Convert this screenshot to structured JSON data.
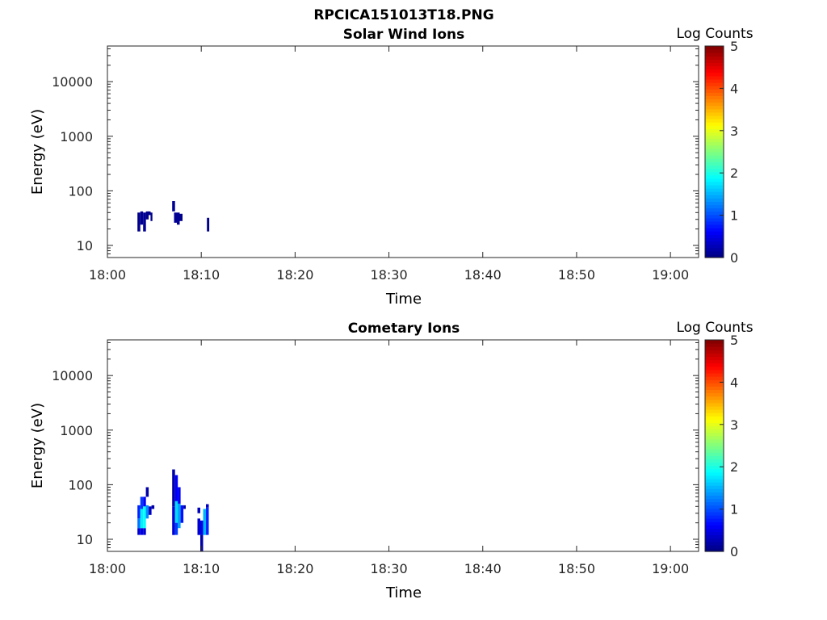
{
  "figure": {
    "title": "RPCICA151013T18.PNG"
  },
  "colorbar": {
    "label": "Log Counts",
    "ticks": [
      "0",
      "1",
      "2",
      "3",
      "4",
      "5"
    ],
    "range": [
      0,
      5
    ],
    "colormap": "jet"
  },
  "chart_data": [
    {
      "type": "heatmap",
      "title": "Solar Wind Ions",
      "xlabel": "Time",
      "ylabel": "Energy (eV)",
      "xlim": [
        "18:00",
        "19:03"
      ],
      "ylim": [
        6,
        45000
      ],
      "yscale": "log",
      "xticks": [
        "18:00",
        "18:10",
        "18:20",
        "18:30",
        "18:40",
        "18:50",
        "19:00"
      ],
      "yticks": [
        "10",
        "100",
        "1000",
        "10000"
      ],
      "cells": [
        {
          "t": 3.2,
          "dt": 0.3,
          "e": [
            18,
            40
          ],
          "v": 0.05
        },
        {
          "t": 3.5,
          "dt": 0.3,
          "e": [
            24,
            42
          ],
          "v": 0.1
        },
        {
          "t": 3.8,
          "dt": 0.3,
          "e": [
            18,
            40
          ],
          "v": 0.1
        },
        {
          "t": 4.1,
          "dt": 0.3,
          "e": [
            30,
            42
          ],
          "v": 0.05
        },
        {
          "t": 4.3,
          "dt": 0.3,
          "e": [
            36,
            42
          ],
          "v": 0.05
        },
        {
          "t": 4.6,
          "dt": 0.2,
          "e": [
            28,
            40
          ],
          "v": 0.05
        },
        {
          "t": 6.9,
          "dt": 0.3,
          "e": [
            42,
            65
          ],
          "v": 0.1
        },
        {
          "t": 7.1,
          "dt": 0.3,
          "e": [
            26,
            40
          ],
          "v": 0.1
        },
        {
          "t": 7.4,
          "dt": 0.3,
          "e": [
            24,
            40
          ],
          "v": 0.1
        },
        {
          "t": 7.7,
          "dt": 0.3,
          "e": [
            28,
            38
          ],
          "v": 0.05
        },
        {
          "t": 10.6,
          "dt": 0.25,
          "e": [
            18,
            32
          ],
          "v": 0.05
        }
      ]
    },
    {
      "type": "heatmap",
      "title": "Cometary Ions",
      "xlabel": "Time",
      "ylabel": "Energy (eV)",
      "xlim": [
        "18:00",
        "19:03"
      ],
      "ylim": [
        6,
        45000
      ],
      "yscale": "log",
      "xticks": [
        "18:00",
        "18:10",
        "18:20",
        "18:30",
        "18:40",
        "18:50",
        "19:00"
      ],
      "yticks": [
        "10",
        "100",
        "1000",
        "10000"
      ],
      "cells": [
        {
          "t": 3.2,
          "dt": 0.3,
          "e": [
            12,
            16
          ],
          "v": 0.4
        },
        {
          "t": 3.2,
          "dt": 0.3,
          "e": [
            16,
            24
          ],
          "v": 1.2
        },
        {
          "t": 3.2,
          "dt": 0.3,
          "e": [
            24,
            42
          ],
          "v": 0.8
        },
        {
          "t": 3.5,
          "dt": 0.3,
          "e": [
            12,
            16
          ],
          "v": 0.5
        },
        {
          "t": 3.5,
          "dt": 0.3,
          "e": [
            16,
            36
          ],
          "v": 1.8
        },
        {
          "t": 3.5,
          "dt": 0.3,
          "e": [
            36,
            60
          ],
          "v": 0.9
        },
        {
          "t": 3.8,
          "dt": 0.3,
          "e": [
            12,
            16
          ],
          "v": 0.4
        },
        {
          "t": 3.8,
          "dt": 0.3,
          "e": [
            16,
            40
          ],
          "v": 1.9
        },
        {
          "t": 3.8,
          "dt": 0.3,
          "e": [
            40,
            60
          ],
          "v": 0.6
        },
        {
          "t": 4.1,
          "dt": 0.3,
          "e": [
            24,
            42
          ],
          "v": 1.3
        },
        {
          "t": 4.1,
          "dt": 0.3,
          "e": [
            60,
            90
          ],
          "v": 0.2
        },
        {
          "t": 4.4,
          "dt": 0.3,
          "e": [
            28,
            40
          ],
          "v": 0.3
        },
        {
          "t": 4.7,
          "dt": 0.3,
          "e": [
            36,
            42
          ],
          "v": 0.2
        },
        {
          "t": 6.9,
          "dt": 0.3,
          "e": [
            12,
            40
          ],
          "v": 0.4
        },
        {
          "t": 6.9,
          "dt": 0.3,
          "e": [
            40,
            190
          ],
          "v": 0.2
        },
        {
          "t": 7.2,
          "dt": 0.3,
          "e": [
            12,
            20
          ],
          "v": 0.9
        },
        {
          "t": 7.2,
          "dt": 0.3,
          "e": [
            20,
            50
          ],
          "v": 1.7
        },
        {
          "t": 7.2,
          "dt": 0.3,
          "e": [
            50,
            150
          ],
          "v": 0.6
        },
        {
          "t": 7.5,
          "dt": 0.3,
          "e": [
            16,
            45
          ],
          "v": 1.4
        },
        {
          "t": 7.5,
          "dt": 0.3,
          "e": [
            45,
            90
          ],
          "v": 0.6
        },
        {
          "t": 7.8,
          "dt": 0.3,
          "e": [
            20,
            42
          ],
          "v": 0.7
        },
        {
          "t": 8.1,
          "dt": 0.25,
          "e": [
            36,
            42
          ],
          "v": 0.2
        },
        {
          "t": 9.6,
          "dt": 0.3,
          "e": [
            12,
            24
          ],
          "v": 0.4
        },
        {
          "t": 9.6,
          "dt": 0.3,
          "e": [
            30,
            38
          ],
          "v": 0.3
        },
        {
          "t": 9.9,
          "dt": 0.3,
          "e": [
            12,
            22
          ],
          "v": 0.5
        },
        {
          "t": 9.9,
          "dt": 0.3,
          "e": [
            6,
            12
          ],
          "v": 0.2
        },
        {
          "t": 10.2,
          "dt": 0.3,
          "e": [
            12,
            36
          ],
          "v": 1.5
        },
        {
          "t": 10.5,
          "dt": 0.3,
          "e": [
            12,
            38
          ],
          "v": 0.8
        },
        {
          "t": 10.5,
          "dt": 0.3,
          "e": [
            38,
            44
          ],
          "v": 0.3
        }
      ]
    }
  ]
}
